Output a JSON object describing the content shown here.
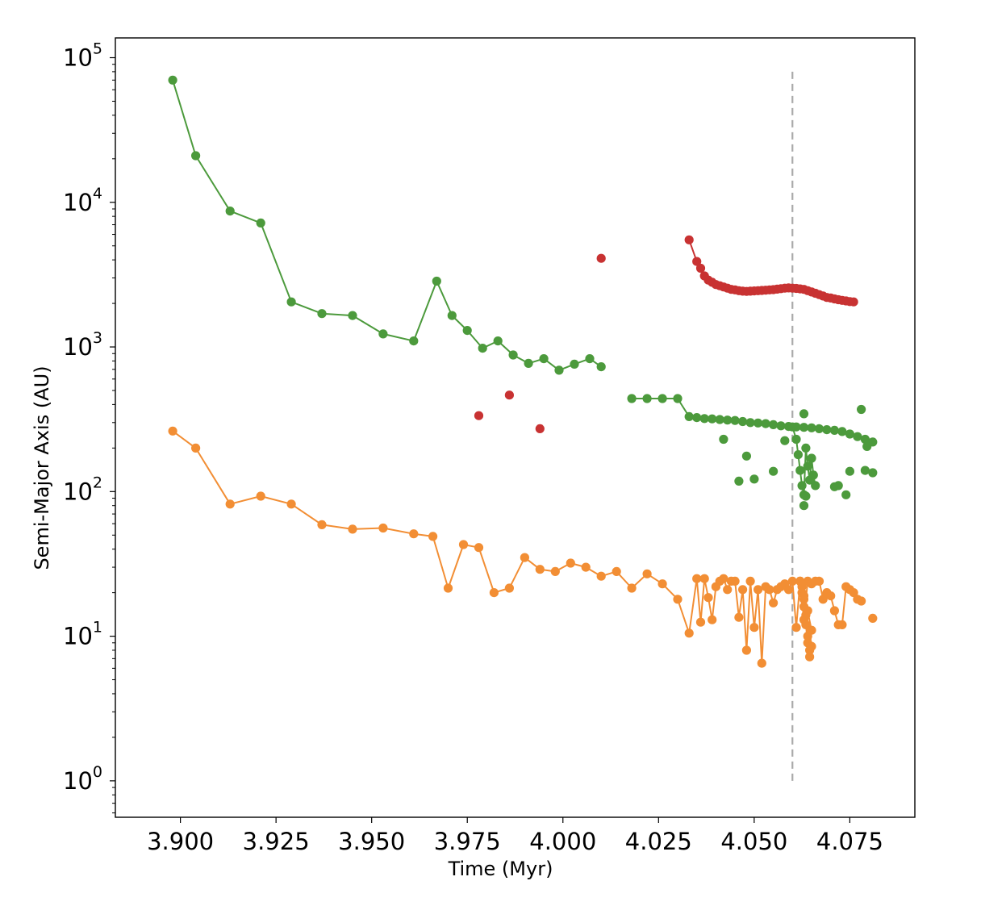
{
  "chart_data": {
    "type": "scatter",
    "title": "",
    "xlabel": "Time   (Myr)",
    "ylabel": "Semi-Major Axis   (AU)",
    "xscale": "linear",
    "yscale": "log",
    "xlim": [
      3.883,
      4.092
    ],
    "ylim": [
      0.56,
      137000
    ],
    "xticks": [
      {
        "v": 3.9,
        "label": "3.900"
      },
      {
        "v": 3.925,
        "label": "3.925"
      },
      {
        "v": 3.95,
        "label": "3.950"
      },
      {
        "v": 3.975,
        "label": "3.975"
      },
      {
        "v": 4.0,
        "label": "4.000"
      },
      {
        "v": 4.025,
        "label": "4.025"
      },
      {
        "v": 4.05,
        "label": "4.050"
      },
      {
        "v": 4.075,
        "label": "4.075"
      }
    ],
    "yticks": [
      {
        "v": 1,
        "base": "10",
        "exp": "0"
      },
      {
        "v": 10,
        "base": "10",
        "exp": "1"
      },
      {
        "v": 100,
        "base": "10",
        "exp": "2"
      },
      {
        "v": 1000,
        "base": "10",
        "exp": "3"
      },
      {
        "v": 10000,
        "base": "10",
        "exp": "4"
      },
      {
        "v": 100000,
        "base": "10",
        "exp": "5"
      }
    ],
    "grid": false,
    "legend": "none",
    "reference_lines": [
      {
        "orientation": "vertical",
        "x": 4.06,
        "y_from": 1,
        "y_to": 80000,
        "style": "dashed",
        "color": "#aaaaaa"
      }
    ],
    "series": [
      {
        "color": "#4c9a3c",
        "mode": "lines+markers",
        "x": [
          3.898,
          3.904,
          3.913,
          3.921,
          3.929,
          3.937,
          3.945,
          3.953,
          3.961,
          3.967,
          3.971,
          3.975,
          3.979,
          3.983,
          3.987,
          3.991,
          3.995,
          3.999,
          4.003,
          4.007,
          4.01
        ],
        "y": [
          70000,
          21000,
          8700,
          7200,
          2050,
          1700,
          1650,
          1230,
          1100,
          2850,
          1650,
          1300,
          980,
          1100,
          880,
          770,
          830,
          690,
          760,
          830,
          730
        ]
      },
      {
        "color": "#4c9a3c",
        "mode": "lines+markers",
        "x": [
          4.018,
          4.022,
          4.026,
          4.03,
          4.033,
          4.035,
          4.037,
          4.039,
          4.041,
          4.043,
          4.045,
          4.047,
          4.049,
          4.051,
          4.053,
          4.055,
          4.057,
          4.059,
          4.061,
          4.063,
          4.065,
          4.067,
          4.069,
          4.071,
          4.073,
          4.075,
          4.077,
          4.079,
          4.081
        ],
        "y": [
          440,
          440,
          440,
          440,
          330,
          325,
          320,
          318,
          315,
          312,
          310,
          305,
          300,
          298,
          295,
          290,
          285,
          282,
          280,
          278,
          276,
          272,
          268,
          265,
          260,
          250,
          240,
          230,
          220
        ]
      },
      {
        "color": "#4c9a3c",
        "mode": "lines+markers",
        "x": [
          4.06,
          4.061,
          4.0615,
          4.062,
          4.0625,
          4.063,
          4.0635,
          4.064,
          4.0645,
          4.065,
          4.0655,
          4.066
        ],
        "y": [
          280,
          230,
          180,
          140,
          110,
          95,
          200,
          150,
          120,
          170,
          130,
          110
        ]
      },
      {
        "color": "#4c9a3c",
        "mode": "markers",
        "x": [
          4.042,
          4.046,
          4.048,
          4.05,
          4.055,
          4.058,
          4.063,
          4.063,
          4.0635,
          4.071,
          4.072,
          4.074,
          4.075,
          4.079,
          4.081,
          4.0795,
          4.078
        ],
        "y": [
          230,
          118,
          176,
          122,
          138,
          225,
          345,
          80,
          93,
          108,
          110,
          95,
          138,
          140,
          135,
          205,
          370
        ]
      },
      {
        "color": "#c83232",
        "mode": "lines+markers",
        "x": [
          4.033,
          4.035,
          4.036,
          4.037,
          4.038,
          4.039,
          4.04,
          4.041,
          4.042,
          4.043,
          4.044,
          4.045,
          4.046,
          4.047,
          4.048,
          4.049,
          4.05,
          4.051,
          4.052,
          4.053,
          4.054,
          4.055,
          4.056,
          4.057,
          4.058,
          4.059,
          4.06,
          4.061,
          4.062,
          4.063,
          4.064,
          4.065,
          4.066,
          4.067,
          4.068,
          4.069,
          4.07,
          4.071,
          4.072,
          4.073,
          4.074,
          4.075,
          4.076
        ],
        "y": [
          5500,
          3900,
          3500,
          3100,
          2900,
          2800,
          2700,
          2650,
          2600,
          2550,
          2500,
          2480,
          2450,
          2430,
          2420,
          2430,
          2440,
          2450,
          2460,
          2470,
          2480,
          2490,
          2510,
          2530,
          2550,
          2560,
          2550,
          2540,
          2520,
          2500,
          2450,
          2400,
          2350,
          2300,
          2250,
          2200,
          2180,
          2150,
          2120,
          2100,
          2080,
          2060,
          2050
        ]
      },
      {
        "color": "#c83232",
        "mode": "markers",
        "x": [
          3.978,
          3.986,
          3.994,
          4.01
        ],
        "y": [
          335,
          465,
          272,
          4100
        ]
      },
      {
        "color": "#f28e34",
        "mode": "lines+markers",
        "x": [
          3.898,
          3.904,
          3.913,
          3.921,
          3.929,
          3.937,
          3.945,
          3.953,
          3.961,
          3.966,
          3.97,
          3.974,
          3.978,
          3.982,
          3.986,
          3.99,
          3.994,
          3.998,
          4.002,
          4.006,
          4.01,
          4.014,
          4.018,
          4.022,
          4.026,
          4.03,
          4.033,
          4.035,
          4.036,
          4.037,
          4.038,
          4.039,
          4.04,
          4.041,
          4.042,
          4.043,
          4.044,
          4.045,
          4.046,
          4.047,
          4.048,
          4.049,
          4.05,
          4.051,
          4.052,
          4.053,
          4.054,
          4.055,
          4.056,
          4.057,
          4.058,
          4.059,
          4.06,
          4.061,
          4.062,
          4.063,
          4.064,
          4.065,
          4.066,
          4.067,
          4.068,
          4.069,
          4.07,
          4.071,
          4.072,
          4.073,
          4.074,
          4.075,
          4.076,
          4.077,
          4.078
        ],
        "y": [
          262,
          200,
          82,
          93,
          82,
          59,
          55,
          56,
          51,
          49,
          21.5,
          43,
          41,
          20,
          21.5,
          35,
          29,
          28,
          32,
          30,
          26,
          28,
          21.5,
          27,
          23,
          18,
          10.5,
          25,
          12.5,
          25,
          18.5,
          13,
          22,
          24,
          25,
          21,
          24,
          24,
          13.5,
          21,
          8,
          24,
          11.5,
          21,
          6.5,
          22,
          21,
          17,
          21,
          22,
          23,
          21,
          24,
          11.5,
          24,
          13,
          24,
          23,
          24,
          24,
          18,
          20,
          19,
          15,
          12,
          12,
          22,
          21,
          20,
          18,
          17.5
        ]
      },
      {
        "color": "#f28e34",
        "mode": "lines+markers",
        "x": [
          4.062,
          4.0625,
          4.063,
          4.0635,
          4.064,
          4.0645,
          4.065,
          4.0625,
          4.063,
          4.0635,
          4.064,
          4.0645,
          4.065,
          4.0625,
          4.063,
          4.064
        ],
        "y": [
          24,
          20,
          16,
          12,
          9,
          7.2,
          8.5,
          22,
          18,
          14,
          10,
          8,
          11,
          23,
          19,
          15
        ]
      },
      {
        "color": "#f28e34",
        "mode": "markers",
        "x": [
          4.081
        ],
        "y": [
          13.3
        ]
      }
    ]
  }
}
